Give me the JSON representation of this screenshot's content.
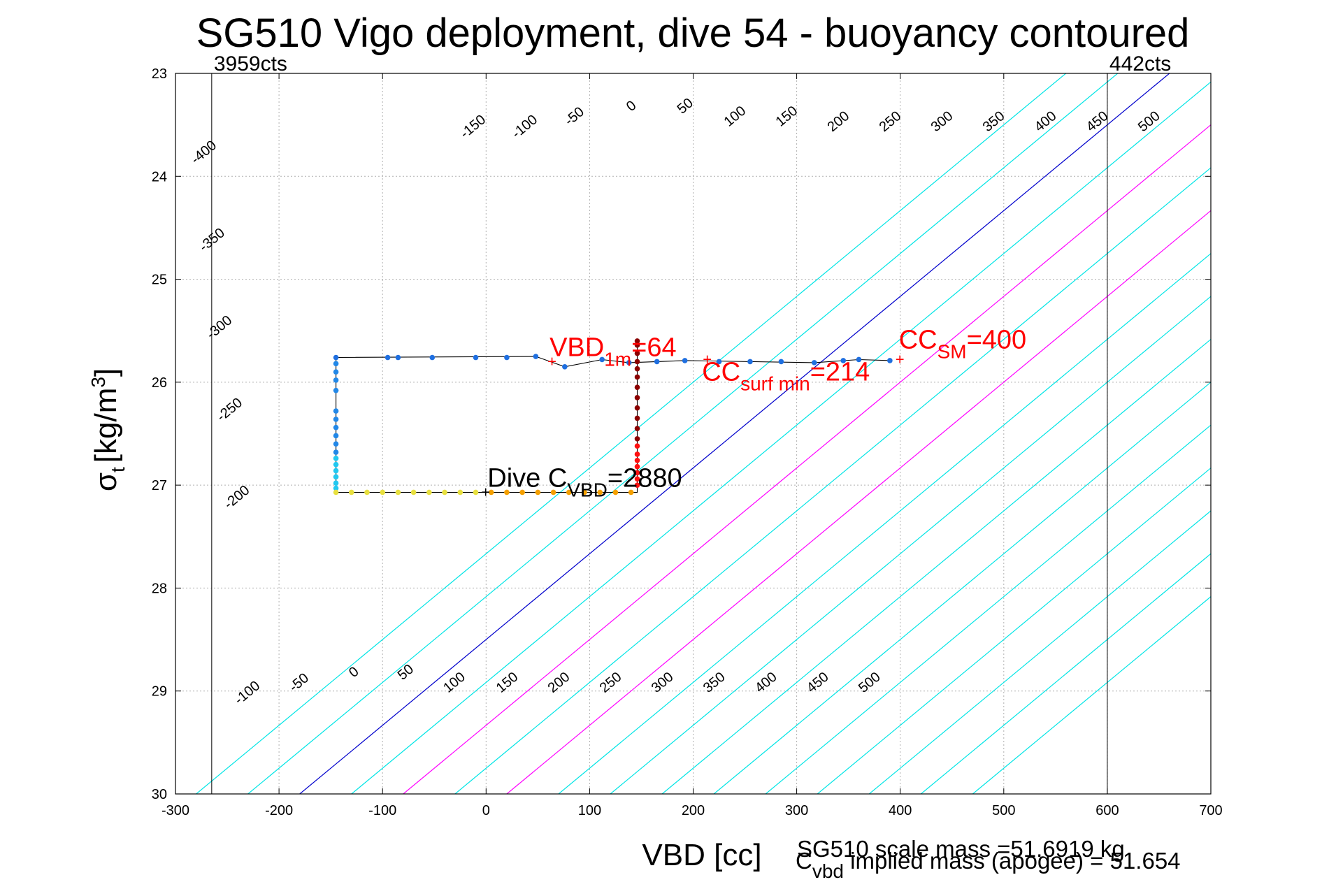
{
  "chart_data": {
    "type": "scatter",
    "title": "SG510 Vigo deployment, dive 54 - buoyancy contoured",
    "xlabel": "VBD [cc]",
    "ylabel_main": "σ",
    "ylabel_sub": "t",
    "ylabel_unit": "[kg/m",
    "ylabel_sup": "3",
    "ylabel_close": "]",
    "xlim": [
      -300,
      700
    ],
    "ylim": [
      23,
      30
    ],
    "y_reversed": true,
    "grid": true,
    "x_ticks": [
      -300,
      -200,
      -100,
      0,
      100,
      200,
      300,
      400,
      500,
      600,
      700
    ],
    "y_ticks": [
      23,
      24,
      25,
      26,
      27,
      28,
      29,
      30
    ],
    "x_tick_labels": [
      "-300",
      "-200",
      "-100",
      "0",
      "100",
      "200",
      "300",
      "400",
      "500",
      "600",
      "700"
    ],
    "y_tick_labels": [
      "23",
      "24",
      "25",
      "26",
      "27",
      "28",
      "29",
      "30"
    ],
    "contour_x_intercept_at_sigma_30": [
      -280,
      -230,
      -180,
      -130,
      -80,
      -30,
      20,
      70,
      120,
      170,
      220,
      270,
      320,
      370,
      420,
      470
    ],
    "contour_color_default": "#00e5e5",
    "contour_color_zero": "#0000cc",
    "contour_color_highlight": "#ff00ff",
    "contour_highlight_intercepts": [
      -80,
      20
    ],
    "contour_zero_intercept": -180,
    "contour_x_slope_per_sigma": 120,
    "contour_labels_top": [
      {
        "text": "-400",
        "vbd": -270,
        "sigma": 23.8
      },
      {
        "text": "-350",
        "vbd": -262,
        "sigma": 24.65
      },
      {
        "text": "-300",
        "vbd": -255,
        "sigma": 25.5
      },
      {
        "text": "-250",
        "vbd": -245,
        "sigma": 26.3
      },
      {
        "text": "-200",
        "vbd": -238,
        "sigma": 27.15
      },
      {
        "text": "-150",
        "vbd": -10,
        "sigma": 23.55
      },
      {
        "text": "-100",
        "vbd": 40,
        "sigma": 23.55
      },
      {
        "text": "-50",
        "vbd": 88,
        "sigma": 23.45
      },
      {
        "text": "0",
        "vbd": 143,
        "sigma": 23.35
      },
      {
        "text": "50",
        "vbd": 195,
        "sigma": 23.35
      },
      {
        "text": "100",
        "vbd": 243,
        "sigma": 23.45
      },
      {
        "text": "150",
        "vbd": 293,
        "sigma": 23.45
      },
      {
        "text": "200",
        "vbd": 343,
        "sigma": 23.5
      },
      {
        "text": "250",
        "vbd": 393,
        "sigma": 23.5
      },
      {
        "text": "300",
        "vbd": 443,
        "sigma": 23.5
      },
      {
        "text": "350",
        "vbd": 493,
        "sigma": 23.5
      },
      {
        "text": "400",
        "vbd": 543,
        "sigma": 23.5
      },
      {
        "text": "450",
        "vbd": 593,
        "sigma": 23.5
      },
      {
        "text": "500",
        "vbd": 643,
        "sigma": 23.5
      }
    ],
    "contour_labels_bottom": [
      {
        "text": "-100",
        "vbd": -228,
        "sigma": 29.05
      },
      {
        "text": "-50",
        "vbd": -178,
        "sigma": 28.95
      },
      {
        "text": "0",
        "vbd": -125,
        "sigma": 28.85
      },
      {
        "text": "50",
        "vbd": -75,
        "sigma": 28.85
      },
      {
        "text": "100",
        "vbd": -28,
        "sigma": 28.95
      },
      {
        "text": "150",
        "vbd": 23,
        "sigma": 28.95
      },
      {
        "text": "200",
        "vbd": 73,
        "sigma": 28.95
      },
      {
        "text": "250",
        "vbd": 123,
        "sigma": 28.95
      },
      {
        "text": "300",
        "vbd": 173,
        "sigma": 28.95
      },
      {
        "text": "350",
        "vbd": 223,
        "sigma": 28.95
      },
      {
        "text": "400",
        "vbd": 273,
        "sigma": 28.95
      },
      {
        "text": "450",
        "vbd": 323,
        "sigma": 28.95
      },
      {
        "text": "500",
        "vbd": 373,
        "sigma": 28.95
      }
    ],
    "vbd_limit_lines": [
      {
        "vbd": -265,
        "label": "3959cts"
      },
      {
        "vbd": 600,
        "label": "442cts"
      }
    ],
    "series": [
      {
        "points": [
          {
            "vbd": -145,
            "sigma": 25.76
          },
          {
            "vbd": -95,
            "sigma": 25.76
          },
          {
            "vbd": -85,
            "sigma": 25.76
          },
          {
            "vbd": -52,
            "sigma": 25.76
          },
          {
            "vbd": -10,
            "sigma": 25.76
          },
          {
            "vbd": 20,
            "sigma": 25.76
          },
          {
            "vbd": 48,
            "sigma": 25.75
          },
          {
            "vbd": 76,
            "sigma": 25.85
          },
          {
            "vbd": 112,
            "sigma": 25.78
          },
          {
            "vbd": 138,
            "sigma": 25.81
          },
          {
            "vbd": 165,
            "sigma": 25.8
          },
          {
            "vbd": 192,
            "sigma": 25.79
          },
          {
            "vbd": 225,
            "sigma": 25.8
          },
          {
            "vbd": 255,
            "sigma": 25.8
          },
          {
            "vbd": 285,
            "sigma": 25.8
          },
          {
            "vbd": 317,
            "sigma": 25.81
          },
          {
            "vbd": 345,
            "sigma": 25.79
          },
          {
            "vbd": 360,
            "sigma": 25.78
          },
          {
            "vbd": 390,
            "sigma": 25.79
          }
        ],
        "color": "#1f6fe0"
      },
      {
        "points": [
          {
            "vbd": -145,
            "sigma": 25.82
          },
          {
            "vbd": -145,
            "sigma": 25.9
          },
          {
            "vbd": -145,
            "sigma": 25.98
          },
          {
            "vbd": -145,
            "sigma": 26.08
          },
          {
            "vbd": -145,
            "sigma": 26.28
          },
          {
            "vbd": -145,
            "sigma": 26.36
          },
          {
            "vbd": -145,
            "sigma": 26.44
          },
          {
            "vbd": -145,
            "sigma": 26.52
          },
          {
            "vbd": -145,
            "sigma": 26.6
          },
          {
            "vbd": -145,
            "sigma": 26.68
          }
        ],
        "color": "#2288e8"
      },
      {
        "points": [
          {
            "vbd": -145,
            "sigma": 26.74
          },
          {
            "vbd": -145,
            "sigma": 26.8
          },
          {
            "vbd": -145,
            "sigma": 26.86
          },
          {
            "vbd": -145,
            "sigma": 26.92
          },
          {
            "vbd": -145,
            "sigma": 26.98
          },
          {
            "vbd": -145,
            "sigma": 27.03
          }
        ],
        "color": "#22c8f0"
      },
      {
        "points": [
          {
            "vbd": -145,
            "sigma": 27.07
          },
          {
            "vbd": -130,
            "sigma": 27.07
          },
          {
            "vbd": -115,
            "sigma": 27.07
          },
          {
            "vbd": -100,
            "sigma": 27.07
          },
          {
            "vbd": -85,
            "sigma": 27.07
          },
          {
            "vbd": -70,
            "sigma": 27.07
          },
          {
            "vbd": -55,
            "sigma": 27.07
          },
          {
            "vbd": -40,
            "sigma": 27.07
          },
          {
            "vbd": -25,
            "sigma": 27.07
          },
          {
            "vbd": -10,
            "sigma": 27.07
          }
        ],
        "color": "#e8e040"
      },
      {
        "points": [
          {
            "vbd": 5,
            "sigma": 27.07
          },
          {
            "vbd": 20,
            "sigma": 27.07
          },
          {
            "vbd": 35,
            "sigma": 27.07
          },
          {
            "vbd": 50,
            "sigma": 27.07
          },
          {
            "vbd": 65,
            "sigma": 27.07
          },
          {
            "vbd": 80,
            "sigma": 27.07
          },
          {
            "vbd": 95,
            "sigma": 27.07
          },
          {
            "vbd": 110,
            "sigma": 27.07
          },
          {
            "vbd": 125,
            "sigma": 27.07
          },
          {
            "vbd": 140,
            "sigma": 27.07
          }
        ],
        "color": "#f5a000"
      },
      {
        "points": [
          {
            "vbd": 146,
            "sigma": 27.0
          },
          {
            "vbd": 146,
            "sigma": 26.94
          },
          {
            "vbd": 146,
            "sigma": 26.88
          },
          {
            "vbd": 146,
            "sigma": 26.82
          },
          {
            "vbd": 146,
            "sigma": 26.76
          },
          {
            "vbd": 146,
            "sigma": 26.7
          },
          {
            "vbd": 146,
            "sigma": 26.62
          }
        ],
        "color": "#ff1010"
      },
      {
        "points": [
          {
            "vbd": 146,
            "sigma": 26.55
          },
          {
            "vbd": 146,
            "sigma": 26.45
          },
          {
            "vbd": 146,
            "sigma": 26.35
          },
          {
            "vbd": 146,
            "sigma": 26.25
          },
          {
            "vbd": 146,
            "sigma": 26.15
          },
          {
            "vbd": 146,
            "sigma": 26.05
          },
          {
            "vbd": 146,
            "sigma": 25.95
          },
          {
            "vbd": 146,
            "sigma": 25.87
          },
          {
            "vbd": 146,
            "sigma": 25.8
          },
          {
            "vbd": 146,
            "sigma": 25.72
          },
          {
            "vbd": 146,
            "sigma": 25.64
          },
          {
            "vbd": 146,
            "sigma": 25.6
          }
        ],
        "color": "#8b0000"
      }
    ],
    "dive_path": [
      {
        "vbd": 146,
        "sigma": 25.6
      },
      {
        "vbd": 146,
        "sigma": 27.07
      },
      {
        "vbd": -145,
        "sigma": 27.07
      },
      {
        "vbd": -145,
        "sigma": 25.76
      },
      {
        "vbd": 48,
        "sigma": 25.75
      },
      {
        "vbd": 76,
        "sigma": 25.85
      },
      {
        "vbd": 112,
        "sigma": 25.78
      },
      {
        "vbd": 138,
        "sigma": 25.81
      },
      {
        "vbd": 192,
        "sigma": 25.79
      },
      {
        "vbd": 317,
        "sigma": 25.81
      },
      {
        "vbd": 360,
        "sigma": 25.78
      },
      {
        "vbd": 390,
        "sigma": 25.79
      }
    ],
    "annotations": [
      {
        "main": "VBD",
        "sub": "1m",
        "rest": "=64",
        "vbd": 64,
        "sigma": 25.8,
        "color": "#ff0000"
      },
      {
        "main": "CC",
        "sub": "surf min",
        "rest": "=214",
        "vbd": 214,
        "sigma": 25.78,
        "color": "#ff0000"
      },
      {
        "main": "CC",
        "sub": "SM",
        "rest": "=400",
        "vbd": 400,
        "sigma": 25.78,
        "color": "#ff0000"
      },
      {
        "main": "Dive C",
        "sub": "VBD",
        "rest": "=2880",
        "vbd": 0,
        "sigma": 27.07,
        "color": "#000000"
      }
    ],
    "footer_scale_mass": "SG510 scale mass =51.6919 kg",
    "footer_implied_main": "C",
    "footer_implied_sub": "vbd",
    "footer_implied_rest": " implied mass (apogee) = 51.654"
  }
}
